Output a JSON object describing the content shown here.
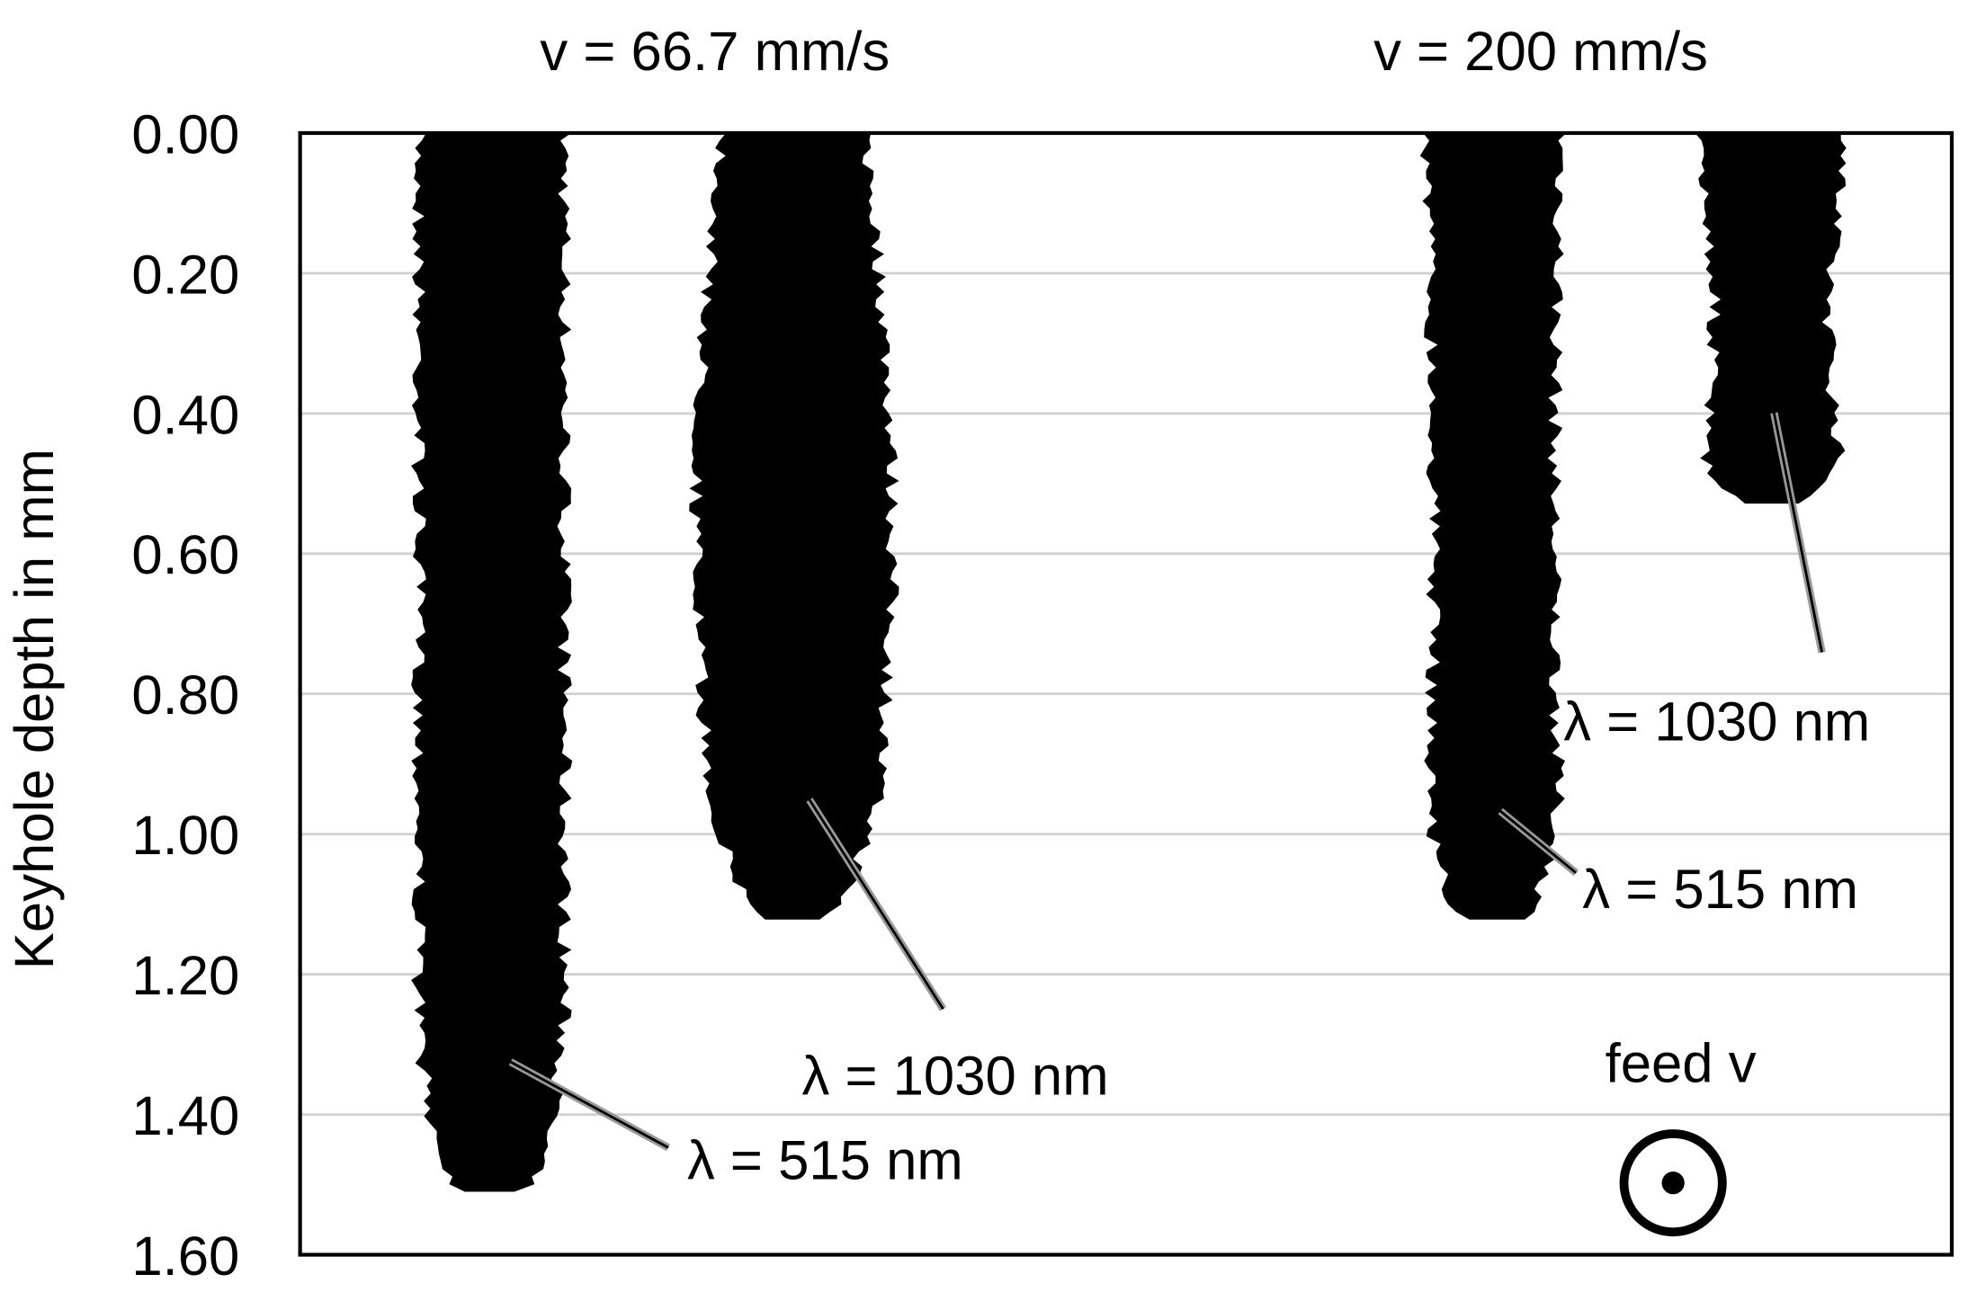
{
  "chart_data": {
    "type": "keyhole",
    "ylabel": "Keyhole depth in mm",
    "ylim": [
      0,
      1.6
    ],
    "yticks": [
      {
        "value": 0,
        "label": "0.00"
      },
      {
        "value": 0.2,
        "label": "0.20"
      },
      {
        "value": 0.4,
        "label": "0.40"
      },
      {
        "value": 0.6,
        "label": "0.60"
      },
      {
        "value": 0.8,
        "label": "0.80"
      },
      {
        "value": 1.0,
        "label": "1.00"
      },
      {
        "value": 1.2,
        "label": "1.20"
      },
      {
        "value": 1.4,
        "label": "1.40"
      },
      {
        "value": 1.6,
        "label": "1.60"
      }
    ],
    "grid": true,
    "color": "#000000",
    "panels": [
      {
        "title": "v = 66.7 mm/s",
        "keyholes": [
          {
            "label": "λ = 515 nm",
            "depth": 1.52
          },
          {
            "label": "λ = 1030 nm",
            "depth": 1.13
          }
        ]
      },
      {
        "title": "v = 200 mm/s",
        "keyholes": [
          {
            "label": "λ = 515 nm",
            "depth": 1.13
          },
          {
            "label": "λ = 1030 nm",
            "depth": 0.53
          }
        ]
      }
    ],
    "annotation": "feed v"
  }
}
